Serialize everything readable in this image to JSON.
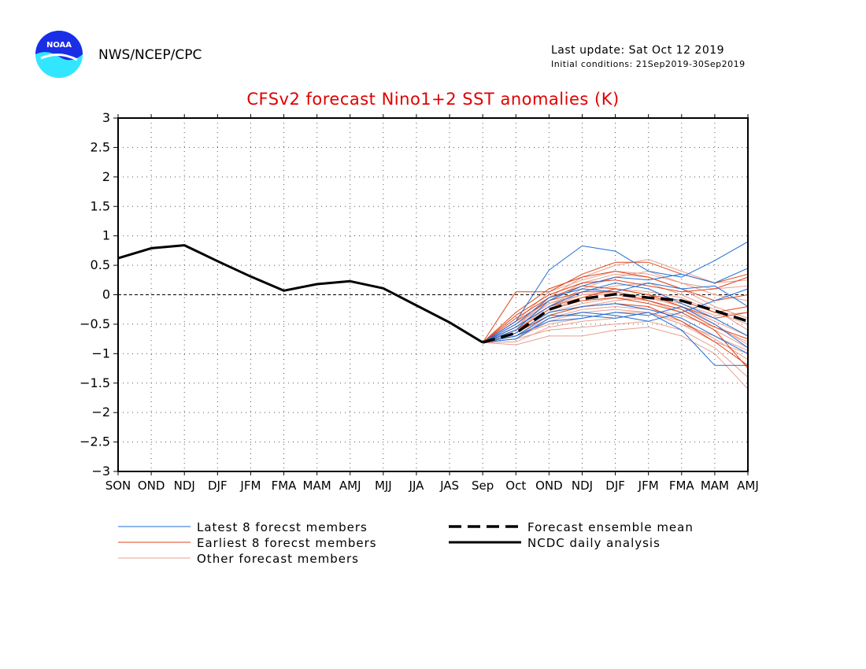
{
  "header": {
    "agency": "NWS/NCEP/CPC",
    "last_update": "Last update: Sat Oct 12 2019",
    "initial_conditions": "Initial conditions: 21Sep2019-30Sep2019",
    "logo_text": "NOAA"
  },
  "colors": {
    "title": "#e00000",
    "latest": "#1f6ed8",
    "earliest": "#e0461a",
    "other": "#e8a090",
    "analysis": "#000000",
    "logo_blue": "#1a2ee6",
    "logo_cyan": "#33e6ff"
  },
  "chart_data": {
    "type": "line",
    "title": "CFSv2 forecast Nino1+2 SST anomalies (K)",
    "categories": [
      "SON",
      "OND",
      "NDJ",
      "DJF",
      "JFM",
      "FMA",
      "MAM",
      "AMJ",
      "MJJ",
      "JJA",
      "JAS",
      "Sep",
      "Oct",
      "OND",
      "NDJ",
      "DJF",
      "JFM",
      "FMA",
      "MAM",
      "AMJ"
    ],
    "ylim": [
      -3,
      3
    ],
    "yticks": [
      3,
      2.5,
      2,
      1.5,
      1,
      0.5,
      0,
      -0.5,
      -1,
      -1.5,
      -2,
      -2.5,
      -3
    ],
    "grid": true,
    "legend_position": "bottom",
    "legend": [
      {
        "key": "latest",
        "label": "Latest 8 forecst members"
      },
      {
        "key": "earliest",
        "label": "Earliest 8 forecst members"
      },
      {
        "key": "other",
        "label": "Other forecast members"
      },
      {
        "key": "mean",
        "label": "Forecast ensemble mean"
      },
      {
        "key": "analysis",
        "label": "NCDC daily analysis"
      }
    ],
    "analysis": {
      "start_index": 0,
      "values": [
        0.62,
        0.79,
        0.84,
        0.57,
        0.31,
        0.07,
        0.18,
        0.23,
        0.11,
        -0.18,
        -0.47,
        -0.81
      ]
    },
    "ensemble_mean": {
      "start_index": 11,
      "values": [
        -0.81,
        -0.65,
        -0.25,
        -0.07,
        0.01,
        -0.05,
        -0.1,
        -0.27,
        -0.45
      ]
    },
    "members": {
      "start_index": 11,
      "latest": [
        [
          -0.81,
          -0.45,
          0.42,
          0.83,
          0.74,
          0.4,
          0.3,
          0.58,
          0.9
        ],
        [
          -0.81,
          -0.6,
          -0.1,
          0.15,
          0.3,
          0.25,
          0.35,
          0.2,
          0.45
        ],
        [
          -0.81,
          -0.7,
          -0.35,
          -0.35,
          -0.4,
          -0.3,
          -0.6,
          -1.2,
          -1.2
        ],
        [
          -0.81,
          -0.55,
          -0.2,
          0.05,
          0.2,
          0.1,
          -0.15,
          -0.4,
          -0.7
        ],
        [
          -0.81,
          -0.75,
          -0.4,
          -0.3,
          -0.35,
          -0.45,
          -0.3,
          -0.1,
          0.1
        ],
        [
          -0.81,
          -0.65,
          -0.3,
          -0.2,
          -0.15,
          -0.25,
          -0.4,
          -0.7,
          -1.0
        ],
        [
          -0.81,
          -0.5,
          -0.05,
          0.1,
          0.05,
          0.2,
          0.1,
          0.15,
          -0.2
        ],
        [
          -0.81,
          -0.7,
          -0.45,
          -0.4,
          -0.3,
          -0.35,
          -0.2,
          -0.5,
          -0.9
        ]
      ],
      "earliest": [
        [
          -0.81,
          0.05,
          0.05,
          0.35,
          0.55,
          0.55,
          0.35,
          0.2,
          0.35
        ],
        [
          -0.81,
          -0.3,
          0.1,
          0.3,
          0.4,
          0.3,
          0.1,
          -0.1,
          0.0
        ],
        [
          -0.81,
          -0.55,
          -0.2,
          -0.05,
          0.1,
          0.0,
          -0.2,
          -0.4,
          -0.3
        ],
        [
          -0.81,
          -0.45,
          -0.1,
          0.05,
          0.05,
          -0.1,
          -0.25,
          -0.55,
          -0.75
        ],
        [
          -0.81,
          -0.65,
          -0.35,
          -0.2,
          -0.15,
          -0.2,
          -0.45,
          -0.8,
          -1.2
        ],
        [
          -0.81,
          -0.35,
          0.0,
          0.2,
          0.25,
          0.15,
          0.05,
          0.1,
          0.3
        ],
        [
          -0.81,
          -0.6,
          -0.25,
          -0.1,
          -0.05,
          -0.15,
          -0.3,
          -0.6,
          -1.25
        ],
        [
          -0.81,
          -0.4,
          -0.05,
          0.15,
          0.1,
          0.0,
          -0.1,
          -0.3,
          -0.2
        ]
      ],
      "other": [
        [
          -0.81,
          -0.6,
          -0.2,
          0.1,
          0.3,
          0.4,
          0.2,
          0.0,
          -0.1
        ],
        [
          -0.81,
          -0.7,
          -0.5,
          -0.4,
          -0.3,
          -0.3,
          -0.5,
          -0.8,
          -1.0
        ],
        [
          -0.81,
          -0.75,
          -0.6,
          -0.55,
          -0.5,
          -0.45,
          -0.6,
          -0.9,
          -1.4
        ],
        [
          -0.81,
          -0.5,
          -0.1,
          0.2,
          0.35,
          0.3,
          0.1,
          -0.2,
          -0.4
        ],
        [
          -0.81,
          -0.85,
          -0.7,
          -0.7,
          -0.6,
          -0.55,
          -0.7,
          -1.0,
          -1.6
        ],
        [
          -0.81,
          -0.55,
          -0.15,
          0.0,
          0.05,
          -0.05,
          -0.2,
          -0.45,
          -0.7
        ],
        [
          -0.81,
          -0.65,
          -0.3,
          -0.15,
          -0.05,
          -0.1,
          -0.3,
          -0.6,
          -0.9
        ],
        [
          -0.81,
          -0.45,
          0.05,
          0.25,
          0.4,
          0.35,
          0.2,
          0.1,
          0.15
        ],
        [
          -0.81,
          -0.7,
          -0.4,
          -0.25,
          -0.2,
          -0.25,
          -0.35,
          -0.55,
          -0.8
        ],
        [
          -0.81,
          -0.6,
          -0.25,
          -0.05,
          0.1,
          0.05,
          -0.05,
          -0.3,
          -0.5
        ],
        [
          -0.81,
          -0.8,
          -0.55,
          -0.45,
          -0.4,
          -0.3,
          -0.45,
          -0.75,
          -1.1
        ],
        [
          -0.81,
          -0.5,
          -0.15,
          0.05,
          0.15,
          0.2,
          0.0,
          -0.25,
          -0.6
        ],
        [
          -0.81,
          -0.65,
          -0.35,
          -0.2,
          -0.1,
          -0.05,
          -0.15,
          -0.35,
          -0.3
        ],
        [
          -0.81,
          -0.55,
          -0.05,
          0.3,
          0.5,
          0.6,
          0.4,
          0.2,
          0.25
        ],
        [
          -0.81,
          -0.75,
          -0.45,
          -0.3,
          -0.25,
          -0.3,
          -0.5,
          -0.7,
          -0.95
        ],
        [
          -0.81,
          -0.6,
          -0.2,
          0.0,
          0.0,
          -0.1,
          -0.25,
          -0.5,
          -0.85
        ]
      ]
    }
  }
}
